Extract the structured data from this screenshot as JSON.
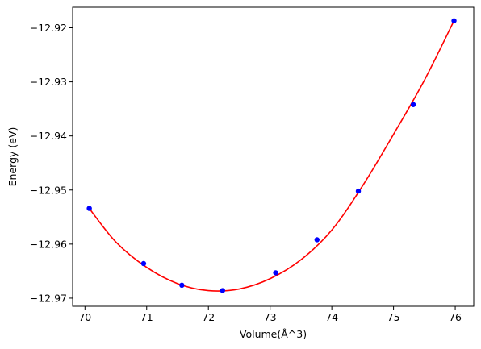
{
  "colors": {
    "fit_line": "#ff0000",
    "data_points": "#0000ff",
    "axes": "#000000",
    "background": "#ffffff"
  },
  "chart_data": {
    "type": "scatter",
    "title": "",
    "xlabel": "Volume(Å^3)",
    "ylabel": "Energy (eV)",
    "xlim": [
      69.8,
      76.3
    ],
    "ylim": [
      -12.9715,
      -12.9162
    ],
    "x_ticks": [
      70,
      71,
      72,
      73,
      74,
      75,
      76
    ],
    "x_tick_labels": [
      "70",
      "71",
      "72",
      "73",
      "74",
      "75",
      "76"
    ],
    "y_ticks": [
      -12.92,
      -12.93,
      -12.94,
      -12.95,
      -12.96,
      -12.97
    ],
    "y_tick_labels": [
      "−12.92",
      "−12.93",
      "−12.94",
      "−12.95",
      "−12.96",
      "−12.97"
    ],
    "grid": false,
    "legend": null,
    "series": [
      {
        "kind": "points",
        "marker": "circle",
        "x": [
          70.07,
          70.95,
          71.57,
          72.23,
          73.09,
          73.76,
          74.43,
          75.32,
          75.98
        ],
        "y": [
          -12.9534,
          -12.9636,
          -12.9676,
          -12.9686,
          -12.9653,
          -12.9592,
          -12.9502,
          -12.9342,
          -12.9187
        ]
      },
      {
        "kind": "fit_curve",
        "x": [
          70.07,
          70.5,
          71.0,
          71.5,
          72.0,
          72.5,
          73.0,
          73.5,
          74.0,
          74.5,
          75.0,
          75.5,
          75.98
        ],
        "y": [
          -12.9534,
          -12.9596,
          -12.9643,
          -12.9673,
          -12.9686,
          -12.9683,
          -12.9664,
          -12.9629,
          -12.9574,
          -12.9492,
          -12.9397,
          -12.9297,
          -12.9187
        ]
      }
    ]
  }
}
